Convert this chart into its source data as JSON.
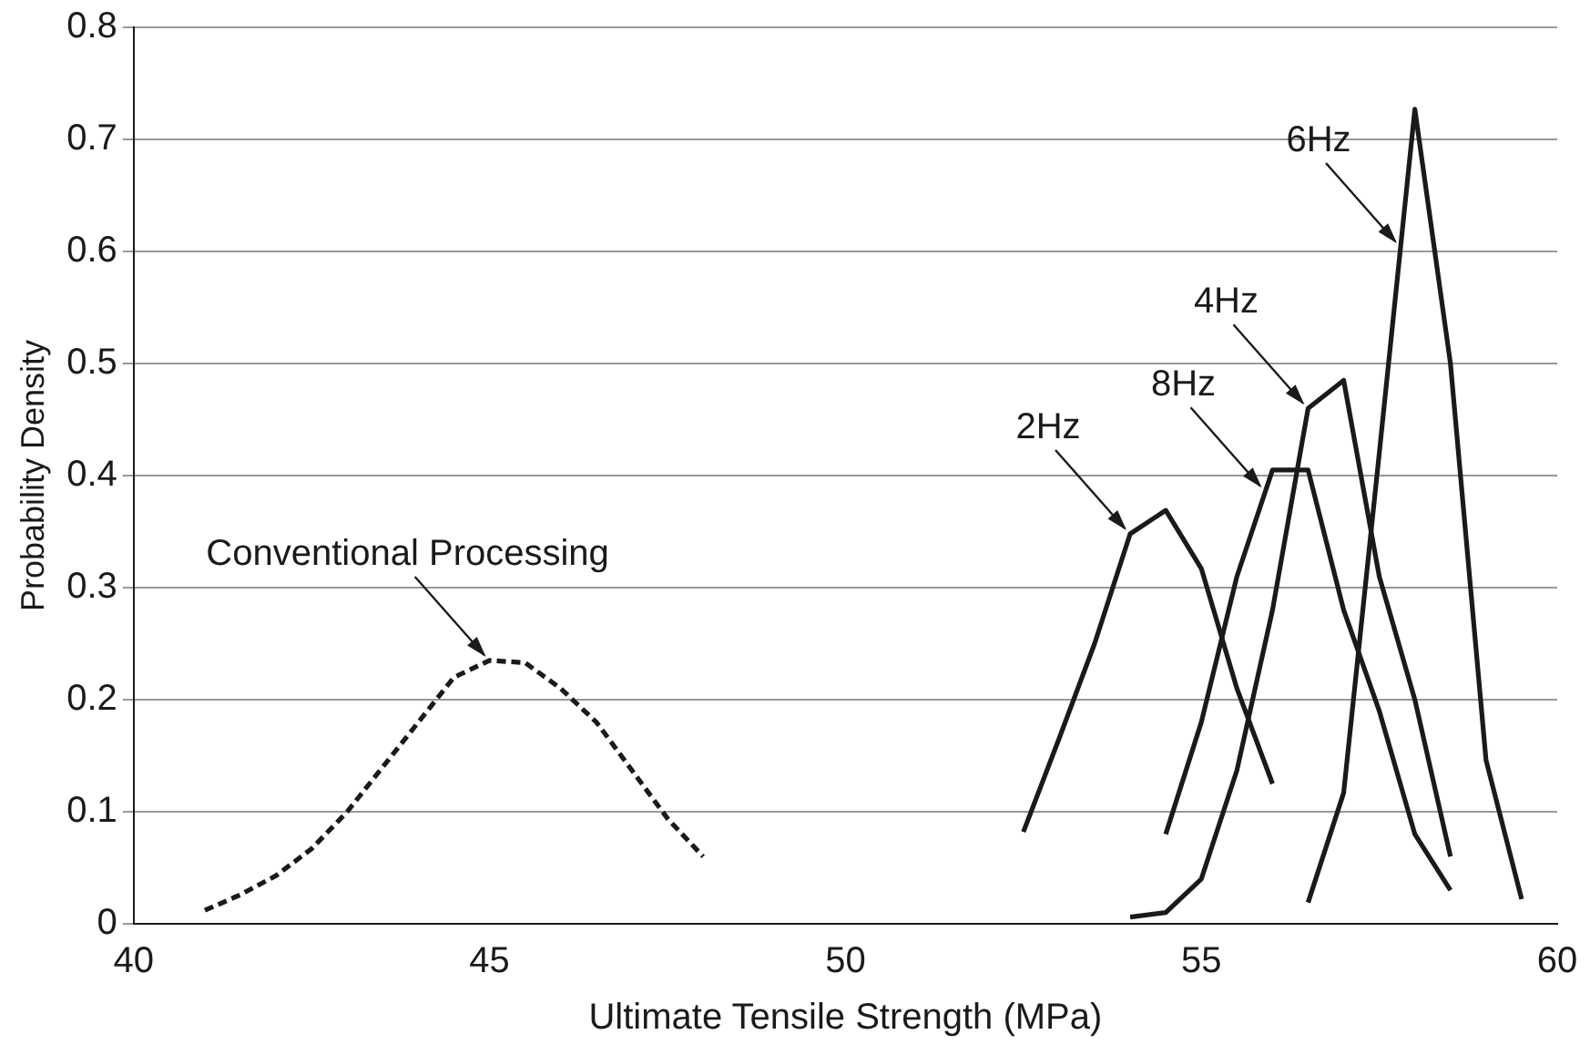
{
  "chart_data": {
    "type": "line",
    "xlabel": "Ultimate Tensile Strength (MPa)",
    "ylabel": "Probability Density",
    "xlim": [
      40,
      60
    ],
    "xticks": [
      40,
      45,
      50,
      55,
      60
    ],
    "ylim": [
      0,
      0.8
    ],
    "yticks": [
      0,
      0.1,
      0.2,
      0.3,
      0.4,
      0.5,
      0.6,
      0.7,
      0.8
    ],
    "grid": "y",
    "legend": false,
    "marker": "none",
    "series": [
      {
        "color": "#1a1a1a",
        "line_style": "dashed",
        "x": [
          41,
          41.5,
          42,
          42.5,
          43,
          43.5,
          44,
          44.5,
          45,
          45.5,
          46,
          46.5,
          47,
          47.5,
          48
        ],
        "values": [
          0.012,
          0.026,
          0.043,
          0.067,
          0.1,
          0.14,
          0.18,
          0.22,
          0.235,
          0.233,
          0.21,
          0.18,
          0.137,
          0.094,
          0.06
        ]
      },
      {
        "color": "#1a1a1a",
        "line_style": "solid",
        "x": [
          52.5,
          53,
          53.5,
          54,
          54.5,
          55,
          55.5,
          56
        ],
        "values": [
          0.082,
          0.165,
          0.25,
          0.348,
          0.369,
          0.317,
          0.21,
          0.125
        ]
      },
      {
        "color": "#1a1a1a",
        "line_style": "solid",
        "x": [
          54,
          54.5,
          55,
          55.5,
          56,
          56.5,
          57,
          57.5,
          58,
          58.5
        ],
        "values": [
          0.006,
          0.01,
          0.04,
          0.137,
          0.28,
          0.46,
          0.485,
          0.31,
          0.2,
          0.06
        ]
      },
      {
        "color": "#1a1a1a",
        "line_style": "solid",
        "x": [
          56.5,
          57,
          57.5,
          58,
          58.5,
          59,
          59.5
        ],
        "values": [
          0.019,
          0.117,
          0.42,
          0.727,
          0.5,
          0.146,
          0.022
        ]
      },
      {
        "color": "#1a1a1a",
        "line_style": "solid",
        "x": [
          54.5,
          55,
          55.5,
          56,
          56.5,
          57,
          57.5,
          58,
          58.5
        ],
        "values": [
          0.08,
          0.18,
          0.31,
          0.405,
          0.405,
          0.28,
          0.19,
          0.08,
          0.03
        ]
      }
    ],
    "annotations": [
      {
        "text": "Conventional Processing",
        "x": 45,
        "y": 0.235
      },
      {
        "text": "2Hz",
        "x": 54,
        "y": 0.348
      },
      {
        "text": "8Hz",
        "x": 55.9,
        "y": 0.386
      },
      {
        "text": "4Hz",
        "x": 56.5,
        "y": 0.46
      },
      {
        "text": "6Hz",
        "x": 57.8,
        "y": 0.604
      }
    ]
  }
}
